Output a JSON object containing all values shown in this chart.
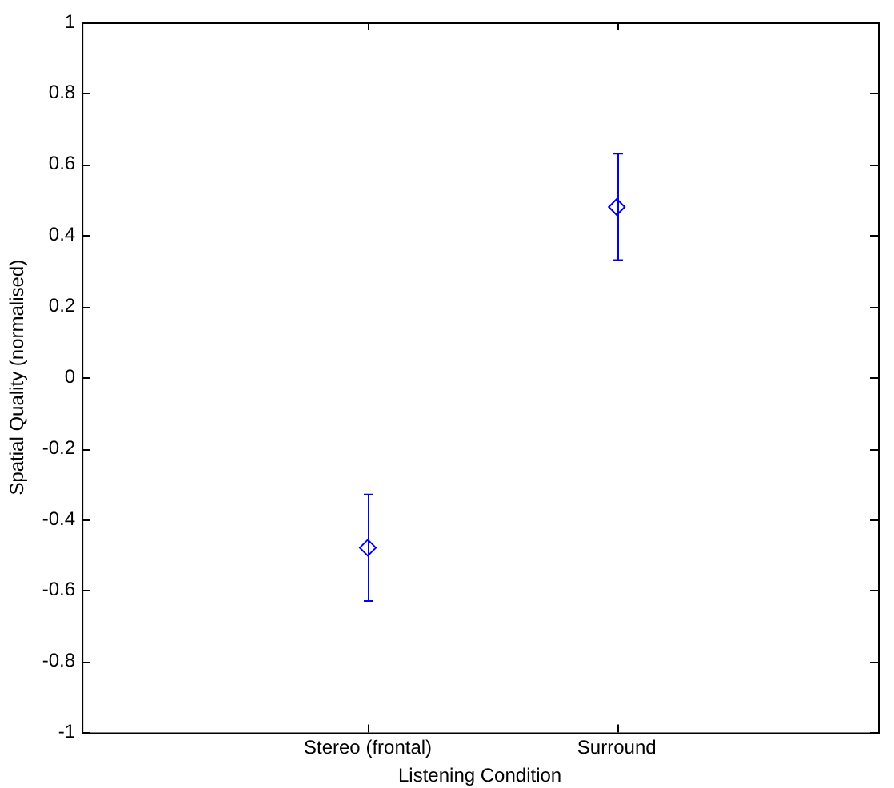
{
  "chart_data": {
    "type": "scatter",
    "xlabel": "Listening Condition",
    "ylabel": "Spatial Quality (normalised)",
    "categories": [
      "Stereo (frontal)",
      "Surround"
    ],
    "series": [
      {
        "color": "#0000ff",
        "values": [
          -0.48,
          0.48
        ],
        "errors": [
          0.15,
          0.15
        ]
      }
    ],
    "ylim": [
      -1,
      1
    ],
    "yticks": [
      -1,
      -0.8,
      -0.6,
      -0.4,
      -0.2,
      0,
      0.2,
      0.4,
      0.6,
      0.8,
      1
    ],
    "marker": "diamond",
    "grid": false,
    "legend": false
  }
}
